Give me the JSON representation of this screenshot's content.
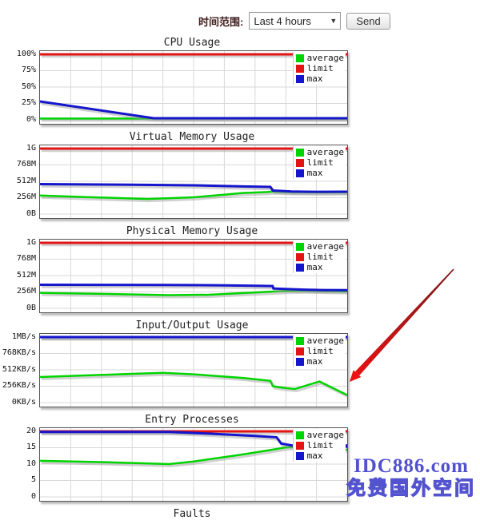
{
  "controls": {
    "label": "时间范围:",
    "select_value": "Last 4 hours",
    "dropdown_caret": "▼",
    "send_label": "Send"
  },
  "watermark": {
    "line1": "IDC886.com",
    "line2": "免费国外空间",
    "color": "#5151cf"
  },
  "annotation": {
    "type": "red-arrow",
    "color_tail": "#7a1a1a",
    "color_head": "#ee1111",
    "from": [
      567,
      337
    ],
    "to": [
      437,
      478
    ]
  },
  "chart_data": [
    {
      "type": "line",
      "title": "CPU Usage",
      "ylim": [
        0,
        100
      ],
      "yticks": [
        "0%",
        "25%",
        "50%",
        "75%",
        "100%"
      ],
      "grid": true,
      "legend_position": "top-right",
      "series": [
        {
          "name": "average",
          "color": "#00d400",
          "width": 2.5,
          "z": 2,
          "points": [
            [
              0,
              2
            ],
            [
              1,
              2
            ]
          ]
        },
        {
          "name": "limit",
          "color": "#e21414",
          "width": 3,
          "z": 1,
          "points": [
            [
              0,
              100
            ],
            [
              1,
              100
            ]
          ]
        },
        {
          "name": "max",
          "color": "#1515cc",
          "width": 3,
          "z": 3,
          "points": [
            [
              0,
              28
            ],
            [
              0.37,
              2.5
            ],
            [
              1,
              2.5
            ]
          ]
        }
      ]
    },
    {
      "type": "line",
      "title": "Virtual Memory Usage",
      "ylim": [
        0,
        1024
      ],
      "yticks": [
        "0B",
        "256M",
        "512M",
        "768M",
        "1G"
      ],
      "grid": true,
      "legend_position": "top-right",
      "series": [
        {
          "name": "average",
          "color": "#00d400",
          "width": 2.5,
          "z": 2,
          "points": [
            [
              0,
              290
            ],
            [
              0.15,
              266
            ],
            [
              0.35,
              236
            ],
            [
              0.5,
              262
            ],
            [
              0.66,
              330
            ],
            [
              0.74,
              345
            ],
            [
              0.758,
              352
            ],
            [
              0.82,
              344
            ],
            [
              0.9,
              340
            ],
            [
              1,
              342
            ]
          ]
        },
        {
          "name": "limit",
          "color": "#e21414",
          "width": 3,
          "z": 1,
          "points": [
            [
              0,
              1024
            ],
            [
              1,
              1024
            ]
          ]
        },
        {
          "name": "max",
          "color": "#1515cc",
          "width": 3,
          "z": 3,
          "points": [
            [
              0,
              468
            ],
            [
              0.3,
              460
            ],
            [
              0.5,
              450
            ],
            [
              0.66,
              432
            ],
            [
              0.75,
              425
            ],
            [
              0.758,
              368
            ],
            [
              0.82,
              352
            ],
            [
              0.9,
              348
            ],
            [
              1,
              350
            ]
          ]
        }
      ]
    },
    {
      "type": "line",
      "title": "Physical Memory Usage",
      "ylim": [
        0,
        1024
      ],
      "yticks": [
        "0B",
        "256M",
        "512M",
        "768M",
        "1G"
      ],
      "grid": true,
      "legend_position": "top-right",
      "series": [
        {
          "name": "average",
          "color": "#00d400",
          "width": 2.5,
          "z": 2,
          "points": [
            [
              0,
              242
            ],
            [
              0.2,
              226
            ],
            [
              0.42,
              206
            ],
            [
              0.55,
              212
            ],
            [
              0.7,
              248
            ],
            [
              0.8,
              272
            ],
            [
              0.86,
              278
            ],
            [
              0.93,
              272
            ],
            [
              1,
              266
            ]
          ]
        },
        {
          "name": "limit",
          "color": "#e21414",
          "width": 3,
          "z": 1,
          "points": [
            [
              0,
              1024
            ],
            [
              1,
              1024
            ]
          ]
        },
        {
          "name": "max",
          "color": "#1515cc",
          "width": 3,
          "z": 3,
          "points": [
            [
              0,
              368
            ],
            [
              0.4,
              366
            ],
            [
              0.6,
              360
            ],
            [
              0.7,
              352
            ],
            [
              0.757,
              348
            ],
            [
              0.76,
              310
            ],
            [
              0.86,
              292
            ],
            [
              0.92,
              286
            ],
            [
              1,
              284
            ]
          ]
        }
      ]
    },
    {
      "type": "line",
      "title": "Input/Output Usage",
      "ylim": [
        0,
        1024
      ],
      "yticks": [
        "0KB/s",
        "256KB/s",
        "512KB/s",
        "768KB/s",
        "1MB/s"
      ],
      "grid": true,
      "legend_position": "top-right",
      "series": [
        {
          "name": "average",
          "color": "#00d400",
          "width": 2.5,
          "z": 2,
          "points": [
            [
              0,
              400
            ],
            [
              0.12,
              420
            ],
            [
              0.3,
              450
            ],
            [
              0.4,
              466
            ],
            [
              0.5,
              442
            ],
            [
              0.66,
              386
            ],
            [
              0.75,
              340
            ],
            [
              0.758,
              256
            ],
            [
              0.79,
              232
            ],
            [
              0.83,
              212
            ],
            [
              0.91,
              330
            ],
            [
              1,
              118
            ]
          ]
        },
        {
          "name": "limit",
          "color": "#e21414",
          "width": 3,
          "z": 1,
          "points": [
            [
              0,
              1024
            ],
            [
              1,
              1024
            ]
          ]
        },
        {
          "name": "max",
          "color": "#1515cc",
          "width": 3,
          "z": 3,
          "points": [
            [
              0,
              1024
            ],
            [
              1,
              1024
            ]
          ]
        }
      ]
    },
    {
      "type": "line",
      "title": "Entry Processes",
      "ylim": [
        0,
        20
      ],
      "yticks": [
        "0",
        "5",
        "10",
        "15",
        "20"
      ],
      "grid": true,
      "legend_position": "top-right",
      "series": [
        {
          "name": "average",
          "color": "#00d400",
          "width": 2.5,
          "z": 2,
          "points": [
            [
              0,
              11
            ],
            [
              0.2,
              10.6
            ],
            [
              0.42,
              10
            ],
            [
              0.5,
              10.8
            ],
            [
              0.65,
              12.8
            ],
            [
              0.75,
              14.3
            ],
            [
              0.8,
              15.1
            ],
            [
              0.85,
              15.2
            ],
            [
              0.93,
              14.8
            ],
            [
              1,
              14.4
            ]
          ]
        },
        {
          "name": "limit",
          "color": "#e21414",
          "width": 3,
          "z": 1,
          "points": [
            [
              0,
              20
            ],
            [
              1,
              20
            ]
          ]
        },
        {
          "name": "max",
          "color": "#1515cc",
          "width": 3,
          "z": 3,
          "end_marker": true,
          "points": [
            [
              0,
              19.8
            ],
            [
              0.42,
              19.8
            ],
            [
              0.55,
              19.3
            ],
            [
              0.7,
              18.6
            ],
            [
              0.77,
              18.2
            ],
            [
              0.785,
              16.3
            ],
            [
              0.83,
              15.5
            ],
            [
              0.92,
              15.2
            ],
            [
              1,
              15.5
            ]
          ]
        }
      ]
    },
    {
      "type": "line",
      "title": "Faults",
      "title_only": true
    }
  ]
}
